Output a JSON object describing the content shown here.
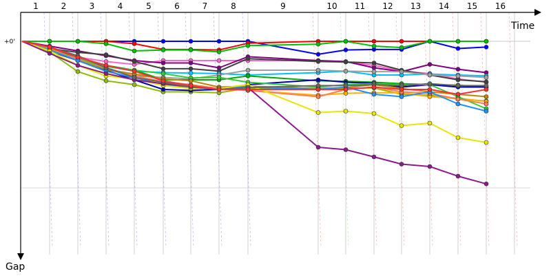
{
  "chart_data": {
    "type": "line",
    "title": "",
    "xlabel": "Time",
    "ylabel": "Gap",
    "y_reference_label": "+0'",
    "categories": [
      "1",
      "2",
      "3",
      "4",
      "5",
      "6",
      "7",
      "8",
      "9",
      "10",
      "11",
      "12",
      "13",
      "14",
      "15",
      "16"
    ],
    "x_axis_position": "top",
    "y_axis_direction": "down",
    "grid": true,
    "legend": "none",
    "series": [
      {
        "color": "#0000ff",
        "values": [
          0,
          0,
          0,
          0,
          0,
          0,
          0,
          0,
          0,
          27,
          18,
          17,
          17,
          0,
          15,
          12
        ]
      },
      {
        "color": "#ff0000",
        "values": [
          0,
          0,
          0,
          0,
          5,
          17,
          17,
          18,
          4,
          0,
          0,
          0,
          0,
          0,
          0,
          0
        ]
      },
      {
        "color": "#00c000",
        "values": [
          0,
          0,
          0,
          5,
          20,
          18,
          18,
          22,
          9,
          6,
          0,
          10,
          13,
          0,
          0,
          0
        ]
      },
      {
        "color": "#ff66cc",
        "values": [
          0,
          18,
          33,
          42,
          48,
          40,
          40,
          40,
          40,
          40,
          43,
          50,
          62,
          67,
          78,
          85
        ]
      },
      {
        "color": "#800080",
        "values": [
          0,
          10,
          20,
          30,
          40,
          45,
          45,
          55,
          32,
          40,
          42,
          55,
          63,
          48,
          58,
          65
        ]
      },
      {
        "color": "#404040",
        "values": [
          0,
          15,
          23,
          28,
          42,
          57,
          57,
          62,
          36,
          42,
          43,
          45,
          60,
          70,
          80,
          84
        ]
      },
      {
        "color": "#8fbc00",
        "values": [
          0,
          22,
          63,
          82,
          90,
          105,
          105,
          107,
          97,
          100,
          97,
          97,
          110,
          112,
          120,
          124
        ]
      },
      {
        "color": "#00bfff",
        "values": [
          0,
          15,
          35,
          52,
          62,
          65,
          66,
          67,
          70,
          65,
          62,
          70,
          70,
          68,
          70,
          72
        ]
      },
      {
        "color": "#ffb000",
        "values": [
          0,
          20,
          40,
          62,
          78,
          88,
          92,
          98,
          102,
          112,
          108,
          107,
          107,
          115,
          118,
          125
        ]
      },
      {
        "color": "#a0a0a0",
        "values": [
          0,
          15,
          35,
          55,
          72,
          75,
          78,
          70,
          60,
          60,
          62,
          63,
          63,
          70,
          72,
          75
        ]
      },
      {
        "color": "#00aa00",
        "values": [
          0,
          15,
          33,
          50,
          60,
          80,
          80,
          80,
          72,
          82,
          83,
          85,
          88,
          90,
          91,
          95
        ]
      },
      {
        "color": "#0000aa",
        "values": [
          0,
          20,
          40,
          60,
          80,
          100,
          102,
          100,
          90,
          80,
          85,
          87,
          95,
          90,
          95,
          95
        ]
      },
      {
        "color": "#32cd32",
        "values": [
          0,
          20,
          38,
          52,
          60,
          67,
          76,
          75,
          85,
          95,
          90,
          88,
          90,
          90,
          115,
          140
        ]
      },
      {
        "color": "#ff7f50",
        "values": [
          0,
          15,
          38,
          58,
          72,
          84,
          90,
          98,
          102,
          115,
          100,
          95,
          105,
          108,
          120,
          130
        ]
      },
      {
        "color": "#b8860b",
        "values": [
          0,
          18,
          40,
          58,
          68,
          78,
          82,
          95,
          93,
          98,
          96,
          90,
          98,
          105,
          110,
          115
        ]
      },
      {
        "color": "#1e90ff",
        "values": [
          0,
          18,
          40,
          62,
          76,
          90,
          95,
          98,
          95,
          100,
          95,
          110,
          115,
          105,
          130,
          145
        ]
      },
      {
        "color": "#e6e600",
        "values": [
          0,
          20,
          50,
          72,
          78,
          92,
          98,
          98,
          90,
          148,
          145,
          150,
          175,
          170,
          200,
          210
        ]
      },
      {
        "color": "#8b1a8b",
        "values": [
          0,
          25,
          50,
          67,
          80,
          88,
          95,
          100,
          96,
          220,
          225,
          240,
          255,
          260,
          280,
          296
        ]
      },
      {
        "color": "#666666",
        "values": [
          0,
          12,
          30,
          55,
          75,
          85,
          95,
          100,
          96,
          92,
          92,
          90,
          92,
          88,
          92,
          92
        ]
      },
      {
        "color": "#ff3030",
        "values": [
          0,
          12,
          33,
          50,
          62,
          82,
          92,
          100,
          100,
          100,
          100,
          95,
          100,
          100,
          110,
          100
        ]
      }
    ]
  }
}
